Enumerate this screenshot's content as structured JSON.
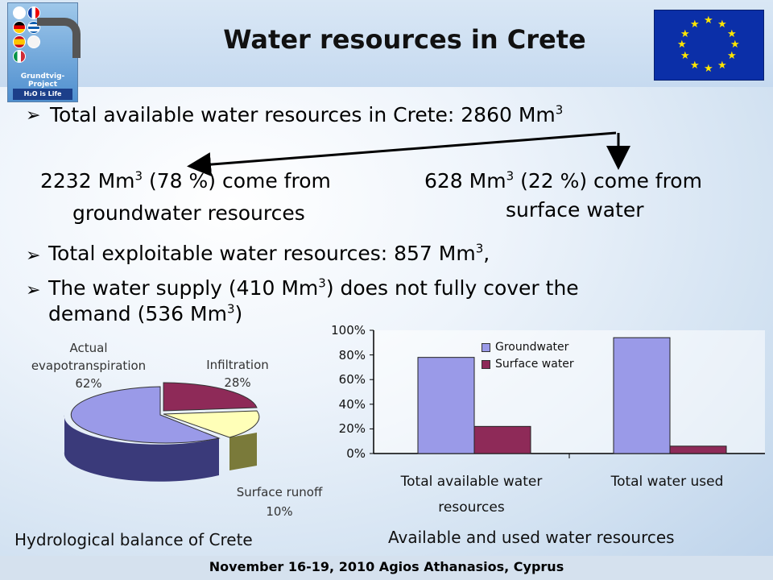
{
  "header": {
    "title": "Water resources in Crete",
    "logo_name": "Grundtvig-Project",
    "logo_tagline": "H₂O is Life"
  },
  "bullets": {
    "total_prefix": "Total available water resources in Crete: 2860 Mm",
    "exp": "3",
    "ground_line1_a": "2232 Mm",
    "ground_line1_b": " (78 %) come from",
    "ground_line2": "groundwater resources",
    "surface_line1_a": "628 Mm",
    "surface_line1_b": " (22 %) come from",
    "surface_line2": "surface water",
    "exploitable_a": "Total exploitable water resources: 857 Mm",
    "exploitable_b": ",",
    "supply_a": "The water supply (410 Mm",
    "supply_b": ") does not fully cover the",
    "supply_c": "demand (536 Mm",
    "supply_d": ")"
  },
  "pie": {
    "caption": "Hydrological balance of Crete",
    "slices": [
      {
        "label_lines": [
          "Actual",
          "evapotranspiration",
          "62%"
        ],
        "value": 62,
        "color": "#9a9ae8"
      },
      {
        "label_lines": [
          "Infiltration",
          "28%"
        ],
        "value": 28,
        "color": "#8e2a58"
      },
      {
        "label_lines": [
          "Surface runoff",
          "10%"
        ],
        "value": 10,
        "color": "#ffffb8"
      }
    ]
  },
  "chart_data": {
    "type": "bar",
    "title": "Available and used water resources",
    "categories": [
      "Total available water resources",
      "Total water used"
    ],
    "category_lines": [
      [
        "Total available water",
        "resources"
      ],
      [
        "Total water used"
      ]
    ],
    "series": [
      {
        "name": "Groundwater",
        "values": [
          78,
          94
        ],
        "color": "#9a9ae8"
      },
      {
        "name": "Surface water",
        "values": [
          22,
          6
        ],
        "color": "#8e2a58"
      }
    ],
    "yticks": [
      "0%",
      "20%",
      "40%",
      "60%",
      "80%",
      "100%"
    ],
    "ylim": [
      0,
      100
    ],
    "legend": "top-center",
    "grid": false
  },
  "footer": {
    "text": "November 16-19, 2010 Agios Athanasios, Cyprus"
  }
}
